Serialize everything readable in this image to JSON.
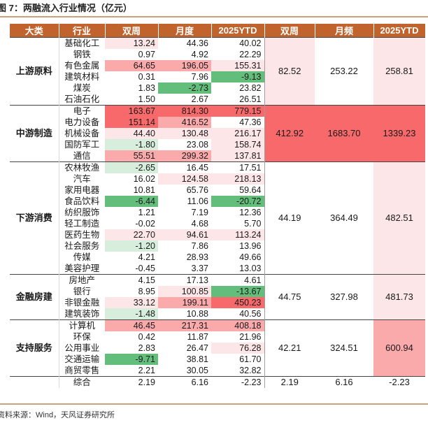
{
  "figure_title": "图 7：两融流入行业情况（亿元）",
  "source_note": "资料来源：Wind，天风证券研究所",
  "headers": [
    "大类",
    "行业",
    "双周",
    "月度",
    "2025YTD",
    "双周",
    "月频",
    "2025YTD"
  ],
  "colors": {
    "header_bg": "#c0632d",
    "rule": "#c8a27a",
    "pos_strong": "#f8696b",
    "pos_medium": "#fbaaac",
    "pos_light": "#fde6e7",
    "neg_strong": "#63be7b",
    "neg_light": "#d7eedc"
  },
  "groups": [
    {
      "category": "上游原料",
      "summary": {
        "biweekly": "82.52",
        "monthly": "253.22",
        "ytd": "258.81"
      },
      "summary_tint": {
        "biweekly": "l",
        "monthly": "",
        "ytd": "l"
      },
      "rows": [
        {
          "industry": "基础化工",
          "biweekly": "13.24",
          "monthly": "44.36",
          "ytd": "40.02",
          "tint": [
            "l",
            "",
            ""
          ]
        },
        {
          "industry": "钢铁",
          "biweekly": "0.97",
          "monthly": "4.92",
          "ytd": "22.29",
          "tint": [
            "",
            "",
            ""
          ]
        },
        {
          "industry": "有色金属",
          "biweekly": "64.65",
          "monthly": "196.05",
          "ytd": "155.31",
          "tint": [
            "m",
            "m",
            "l"
          ]
        },
        {
          "industry": "建筑材料",
          "biweekly": "0.31",
          "monthly": "7.96",
          "ytd": "-9.13",
          "tint": [
            "",
            "",
            "G"
          ]
        },
        {
          "industry": "煤炭",
          "biweekly": "1.83",
          "monthly": "-2.73",
          "ytd": "23.82",
          "tint": [
            "",
            "G",
            ""
          ]
        },
        {
          "industry": "石油石化",
          "biweekly": "1.50",
          "monthly": "2.67",
          "ytd": "26.51",
          "tint": [
            "",
            "",
            ""
          ]
        }
      ]
    },
    {
      "category": "中游制造",
      "summary": {
        "biweekly": "412.92",
        "monthly": "1683.70",
        "ytd": "1339.23"
      },
      "summary_tint": {
        "biweekly": "S",
        "monthly": "S",
        "ytd": "S"
      },
      "rows": [
        {
          "industry": "电子",
          "biweekly": "163.67",
          "monthly": "814.30",
          "ytd": "779.15",
          "tint": [
            "S",
            "S",
            "S"
          ]
        },
        {
          "industry": "电力设备",
          "biweekly": "151.14",
          "monthly": "416.52",
          "ytd": "47.36",
          "tint": [
            "S",
            "m",
            ""
          ]
        },
        {
          "industry": "机械设备",
          "biweekly": "44.40",
          "monthly": "130.48",
          "ytd": "216.17",
          "tint": [
            "l",
            "l",
            "l"
          ]
        },
        {
          "industry": "国防军工",
          "biweekly": "-1.80",
          "monthly": "23.08",
          "ytd": "158.74",
          "tint": [
            "g",
            "",
            "l"
          ]
        },
        {
          "industry": "通信",
          "biweekly": "55.51",
          "monthly": "299.32",
          "ytd": "137.81",
          "tint": [
            "m",
            "m",
            "l"
          ]
        }
      ]
    },
    {
      "category": "下游消费",
      "summary": {
        "biweekly": "44.19",
        "monthly": "364.49",
        "ytd": "482.51"
      },
      "summary_tint": {
        "biweekly": "",
        "monthly": "",
        "ytd": "l"
      },
      "rows": [
        {
          "industry": "农林牧渔",
          "biweekly": "-2.65",
          "monthly": "16.45",
          "ytd": "17.51",
          "tint": [
            "g",
            "",
            ""
          ]
        },
        {
          "industry": "汽车",
          "biweekly": "16.02",
          "monthly": "124.58",
          "ytd": "218.13",
          "tint": [
            "",
            "l",
            "l"
          ]
        },
        {
          "industry": "家用电器",
          "biweekly": "10.81",
          "monthly": "65.76",
          "ytd": "59.64",
          "tint": [
            "",
            "",
            ""
          ]
        },
        {
          "industry": "食品饮料",
          "biweekly": "-6.44",
          "monthly": "11.06",
          "ytd": "-20.72",
          "tint": [
            "G",
            "",
            "G"
          ]
        },
        {
          "industry": "纺织服饰",
          "biweekly": "1.21",
          "monthly": "7.19",
          "ytd": "12.36",
          "tint": [
            "",
            "",
            ""
          ]
        },
        {
          "industry": "轻工制造",
          "biweekly": "-0.02",
          "monthly": "4.68",
          "ytd": "5.70",
          "tint": [
            "",
            "",
            ""
          ]
        },
        {
          "industry": "医药生物",
          "biweekly": "22.70",
          "monthly": "94.61",
          "ytd": "113.24",
          "tint": [
            "l",
            "l",
            "l"
          ]
        },
        {
          "industry": "社会服务",
          "biweekly": "-1.20",
          "monthly": "7.86",
          "ytd": "13.96",
          "tint": [
            "g",
            "",
            ""
          ]
        },
        {
          "industry": "传媒",
          "biweekly": "4.21",
          "monthly": "28.93",
          "ytd": "49.66",
          "tint": [
            "",
            "",
            ""
          ]
        },
        {
          "industry": "美容护理",
          "biweekly": "-0.45",
          "monthly": "3.37",
          "ytd": "13.03",
          "tint": [
            "",
            "",
            ""
          ]
        }
      ]
    },
    {
      "category": "金融房建",
      "summary": {
        "biweekly": "44.75",
        "monthly": "327.98",
        "ytd": "481.73"
      },
      "summary_tint": {
        "biweekly": "",
        "monthly": "",
        "ytd": "l"
      },
      "rows": [
        {
          "industry": "房地产",
          "biweekly": "4.15",
          "monthly": "17.13",
          "ytd": "4.61",
          "tint": [
            "",
            "",
            ""
          ]
        },
        {
          "industry": "银行",
          "biweekly": "8.95",
          "monthly": "100.85",
          "ytd": "-13.67",
          "tint": [
            "",
            "l",
            "G"
          ]
        },
        {
          "industry": "非银金融",
          "biweekly": "33.12",
          "monthly": "199.11",
          "ytd": "450.23",
          "tint": [
            "l",
            "m",
            "S"
          ]
        },
        {
          "industry": "建筑装饰",
          "biweekly": "-1.48",
          "monthly": "10.88",
          "ytd": "40.56",
          "tint": [
            "g",
            "",
            ""
          ]
        }
      ]
    },
    {
      "category": "支持服务",
      "summary": {
        "biweekly": "42.21",
        "monthly": "324.51",
        "ytd": "600.94"
      },
      "summary_tint": {
        "biweekly": "",
        "monthly": "",
        "ytd": "m"
      },
      "rows": [
        {
          "industry": "计算机",
          "biweekly": "46.45",
          "monthly": "217.31",
          "ytd": "408.18",
          "tint": [
            "m",
            "m",
            "m"
          ]
        },
        {
          "industry": "环保",
          "biweekly": "0.42",
          "monthly": "11.87",
          "ytd": "21.96",
          "tint": [
            "",
            "",
            ""
          ]
        },
        {
          "industry": "公用事业",
          "biweekly": "2.83",
          "monthly": "26.47",
          "ytd": "76.28",
          "tint": [
            "",
            "",
            "l"
          ]
        },
        {
          "industry": "交通运输",
          "biweekly": "-9.71",
          "monthly": "38.81",
          "ytd": "61.70",
          "tint": [
            "G",
            "",
            ""
          ]
        },
        {
          "industry": "商贸零售",
          "biweekly": "2.21",
          "monthly": "30.05",
          "ytd": "32.82",
          "tint": [
            "",
            "",
            ""
          ]
        }
      ]
    }
  ],
  "total": {
    "industry": "综合",
    "biweekly": "2.19",
    "monthly": "6.16",
    "ytd": "-2.23",
    "agg_biweekly": "2.19",
    "agg_monthly": "6.16",
    "agg_ytd": "-2.23"
  }
}
